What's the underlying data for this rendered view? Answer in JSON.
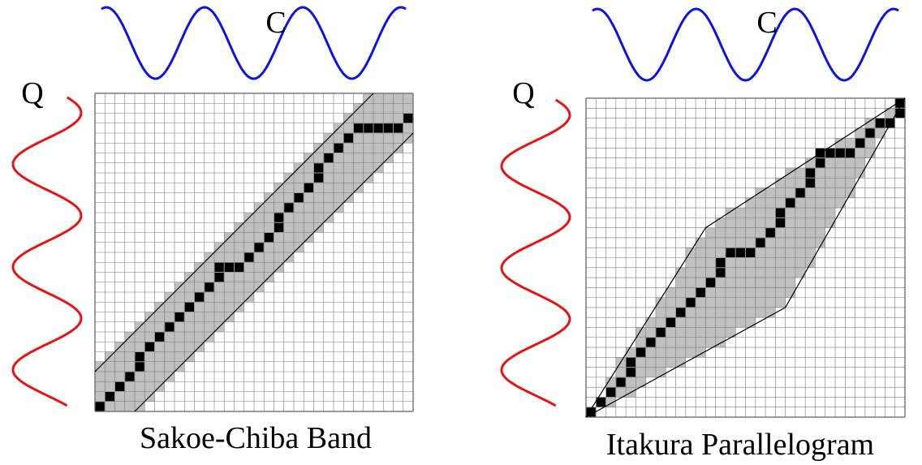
{
  "colors": {
    "series_c": "#0a14e6",
    "series_q": "#e61414",
    "band_fill": "#c0c0c0",
    "path_fill": "#000000",
    "grid_line": "#7a7a7a",
    "boundary": "#000000"
  },
  "panels": [
    {
      "id": "sakoe-chiba",
      "caption": "Sakoe-Chiba Band",
      "top_series_label": "C",
      "left_series_label": "Q",
      "grid_cells": 32,
      "constraint": "band",
      "band_halfwidth_cells": 4,
      "warping_path": [
        [
          0,
          0
        ],
        [
          1,
          1
        ],
        [
          2,
          2
        ],
        [
          3,
          3
        ],
        [
          4,
          4
        ],
        [
          4,
          5
        ],
        [
          5,
          6
        ],
        [
          6,
          7
        ],
        [
          7,
          8
        ],
        [
          8,
          9
        ],
        [
          9,
          10
        ],
        [
          10,
          11
        ],
        [
          11,
          12
        ],
        [
          12,
          13
        ],
        [
          12,
          14
        ],
        [
          13,
          14
        ],
        [
          14,
          14
        ],
        [
          15,
          15
        ],
        [
          16,
          16
        ],
        [
          17,
          17
        ],
        [
          18,
          18
        ],
        [
          18,
          19
        ],
        [
          19,
          20
        ],
        [
          20,
          21
        ],
        [
          21,
          22
        ],
        [
          22,
          23
        ],
        [
          22,
          24
        ],
        [
          23,
          25
        ],
        [
          24,
          26
        ],
        [
          25,
          27
        ],
        [
          26,
          28
        ],
        [
          27,
          28
        ],
        [
          28,
          28
        ],
        [
          29,
          28
        ],
        [
          30,
          28
        ],
        [
          31,
          29
        ]
      ]
    },
    {
      "id": "itakura",
      "caption": "Itakura Parallelogram",
      "top_series_label": "C",
      "left_series_label": "Q",
      "grid_cells": 32,
      "constraint": "parallelogram",
      "parallelogram_vertices": [
        [
          0,
          0
        ],
        [
          12,
          19
        ],
        [
          32,
          32
        ],
        [
          20,
          11
        ]
      ],
      "warping_path": [
        [
          0,
          0
        ],
        [
          1,
          1
        ],
        [
          2,
          2
        ],
        [
          3,
          3
        ],
        [
          4,
          4
        ],
        [
          4,
          5
        ],
        [
          5,
          6
        ],
        [
          6,
          7
        ],
        [
          7,
          8
        ],
        [
          8,
          9
        ],
        [
          9,
          10
        ],
        [
          10,
          11
        ],
        [
          11,
          12
        ],
        [
          12,
          13
        ],
        [
          13,
          14
        ],
        [
          13,
          15
        ],
        [
          14,
          16
        ],
        [
          15,
          16
        ],
        [
          16,
          16
        ],
        [
          17,
          17
        ],
        [
          18,
          18
        ],
        [
          19,
          19
        ],
        [
          19,
          20
        ],
        [
          20,
          21
        ],
        [
          21,
          22
        ],
        [
          22,
          23
        ],
        [
          22,
          24
        ],
        [
          23,
          25
        ],
        [
          23,
          26
        ],
        [
          24,
          26
        ],
        [
          25,
          26
        ],
        [
          26,
          26
        ],
        [
          27,
          27
        ],
        [
          28,
          28
        ],
        [
          29,
          29
        ],
        [
          30,
          29
        ],
        [
          31,
          30
        ],
        [
          32,
          31
        ]
      ]
    }
  ]
}
